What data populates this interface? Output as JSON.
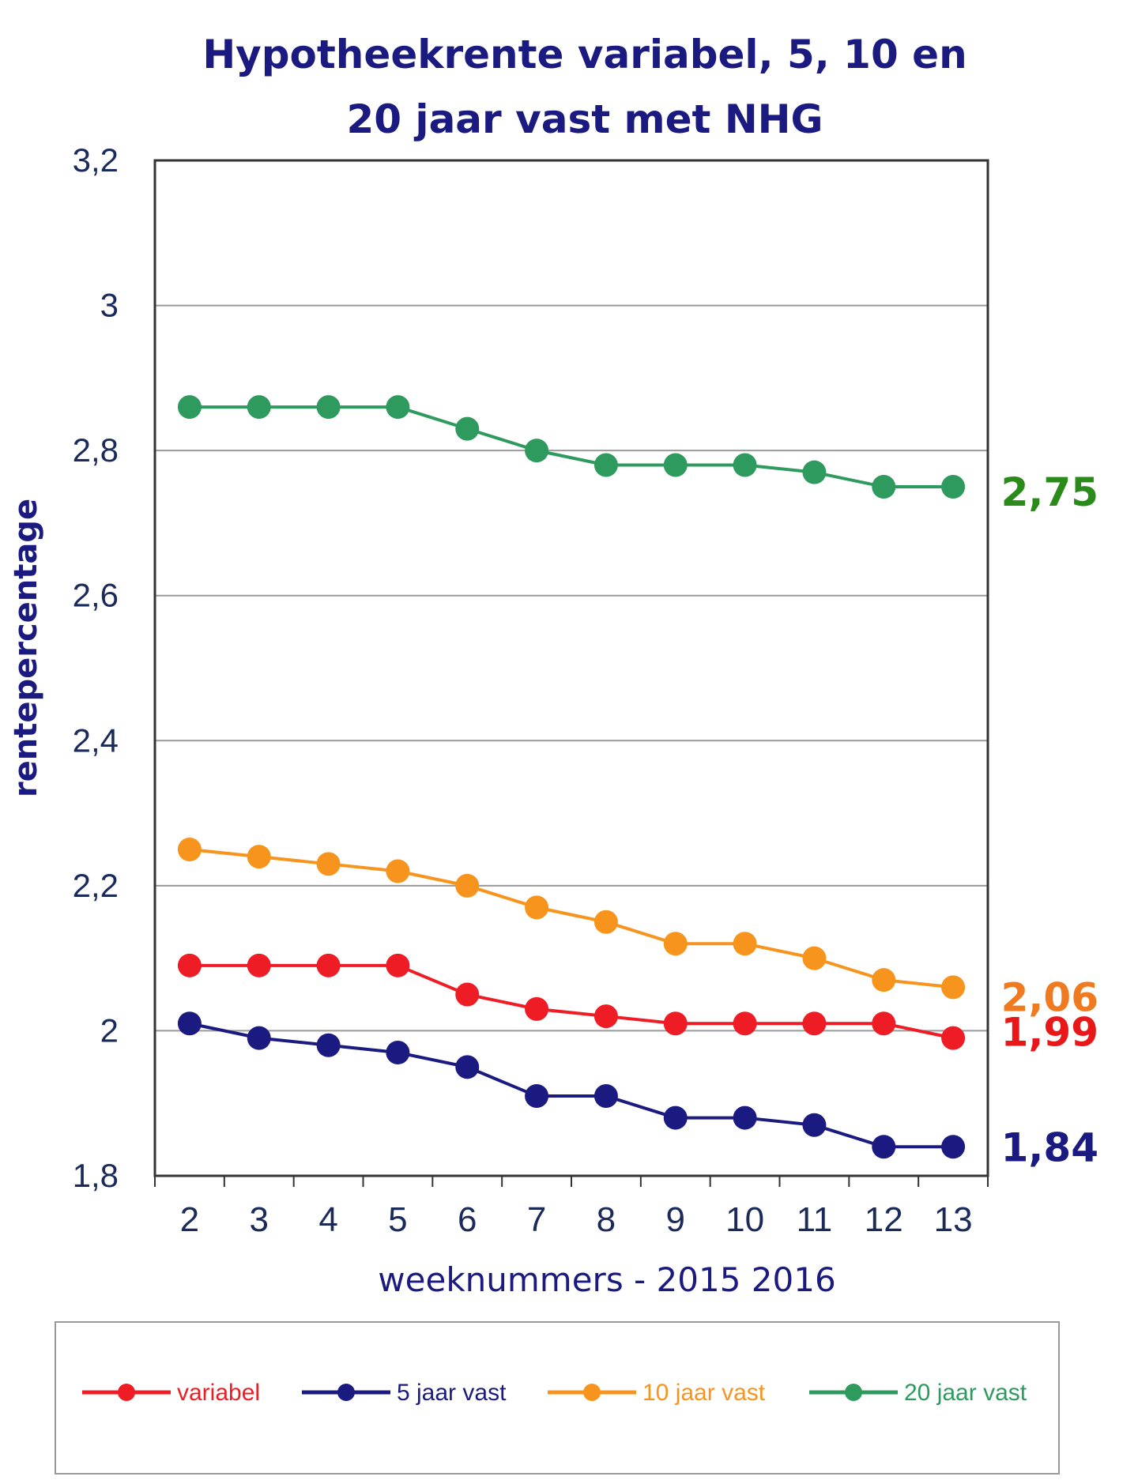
{
  "chart_data": {
    "type": "line",
    "title_lines": [
      "Hypotheekrente variabel, 5, 10 en",
      "20 jaar vast met NHG"
    ],
    "xlabel": "weeknummers - 2015 2016",
    "ylabel": "rentepercentage",
    "x": [
      2,
      3,
      4,
      5,
      6,
      7,
      8,
      9,
      10,
      11,
      12,
      13
    ],
    "x_tick_labels": [
      "2",
      "3",
      "4",
      "5",
      "6",
      "7",
      "8",
      "9",
      "10",
      "11",
      "12",
      "13"
    ],
    "ylim": [
      1.8,
      3.2
    ],
    "y_ticks": [
      1.8,
      2,
      2.2,
      2.4,
      2.6,
      2.8,
      3,
      3.2
    ],
    "y_tick_labels": [
      "1,8",
      "2",
      "2,2",
      "2,4",
      "2,6",
      "2,8",
      "3",
      "3,2"
    ],
    "grid": "horizontal",
    "legend_position": "bottom",
    "series": [
      {
        "name": "variabel",
        "color": "#ee1c24",
        "values": [
          2.09,
          2.09,
          2.09,
          2.09,
          2.05,
          2.03,
          2.02,
          2.01,
          2.01,
          2.01,
          2.01,
          1.99
        ],
        "end_label": "1,99"
      },
      {
        "name": "5 jaar vast",
        "color": "#1a1a80",
        "values": [
          2.01,
          1.99,
          1.98,
          1.97,
          1.95,
          1.91,
          1.91,
          1.88,
          1.88,
          1.87,
          1.84,
          1.84
        ],
        "end_label": "1,84"
      },
      {
        "name": "10 jaar vast",
        "color": "#f7941d",
        "values": [
          2.25,
          2.24,
          2.23,
          2.22,
          2.2,
          2.17,
          2.15,
          2.12,
          2.12,
          2.1,
          2.07,
          2.06
        ],
        "end_label": "2,06"
      },
      {
        "name": "20 jaar vast",
        "color": "#2e9a5e",
        "values": [
          2.86,
          2.86,
          2.86,
          2.86,
          2.83,
          2.8,
          2.78,
          2.78,
          2.78,
          2.77,
          2.75,
          2.75
        ],
        "end_label": "2,75"
      }
    ],
    "end_label_colors": {
      "variabel": "#e81818",
      "5 jaar vast": "#1a1a80",
      "10 jaar vast": "#f07a20",
      "20 jaar vast": "#2a8a1a"
    }
  }
}
